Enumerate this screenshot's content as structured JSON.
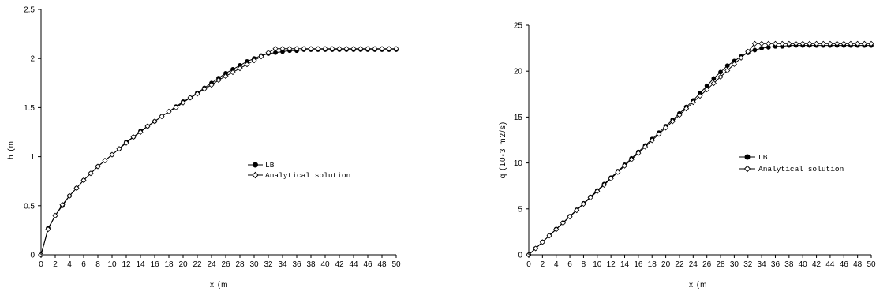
{
  "chart_data": [
    {
      "type": "line",
      "title": "",
      "xlabel": "x (m",
      "ylabel": "h (m",
      "xlim": [
        0,
        50
      ],
      "ylim": [
        0,
        2.5
      ],
      "x_ticks": [
        "0",
        "2",
        "4",
        "6",
        "8",
        "10",
        "12",
        "14",
        "16",
        "18",
        "20",
        "22",
        "24",
        "26",
        "28",
        "30",
        "32",
        "34",
        "36",
        "38",
        "40",
        "42",
        "44",
        "46",
        "48",
        "50"
      ],
      "y_ticks": [
        "0",
        "0.5",
        "1",
        "1.5",
        "2",
        "2.5"
      ],
      "legend_position": "right",
      "x": [
        0,
        1,
        2,
        3,
        4,
        5,
        6,
        7,
        8,
        9,
        10,
        11,
        12,
        13,
        14,
        15,
        16,
        17,
        18,
        19,
        20,
        21,
        22,
        23,
        24,
        25,
        26,
        27,
        28,
        29,
        30,
        31,
        32,
        33,
        34,
        35,
        36,
        37,
        38,
        39,
        40,
        41,
        42,
        43,
        44,
        45,
        46,
        47,
        48,
        49,
        50
      ],
      "series": [
        {
          "name": "LB",
          "marker": "filled-circle",
          "values": [
            0,
            0.27,
            0.4,
            0.5,
            0.6,
            0.68,
            0.76,
            0.83,
            0.9,
            0.96,
            1.02,
            1.08,
            1.15,
            1.2,
            1.26,
            1.31,
            1.36,
            1.41,
            1.46,
            1.51,
            1.56,
            1.6,
            1.65,
            1.7,
            1.75,
            1.8,
            1.85,
            1.89,
            1.93,
            1.97,
            2.0,
            2.03,
            2.05,
            2.06,
            2.07,
            2.08,
            2.08,
            2.09,
            2.09,
            2.09,
            2.09,
            2.09,
            2.09,
            2.09,
            2.09,
            2.09,
            2.09,
            2.09,
            2.09,
            2.09,
            2.09
          ]
        },
        {
          "name": "Analytical solution",
          "marker": "open-diamond",
          "values": [
            0,
            0.26,
            0.4,
            0.51,
            0.6,
            0.68,
            0.76,
            0.83,
            0.9,
            0.96,
            1.02,
            1.08,
            1.14,
            1.2,
            1.25,
            1.31,
            1.36,
            1.41,
            1.46,
            1.5,
            1.55,
            1.6,
            1.64,
            1.69,
            1.73,
            1.78,
            1.82,
            1.86,
            1.9,
            1.94,
            1.98,
            2.02,
            2.06,
            2.1,
            2.1,
            2.1,
            2.1,
            2.1,
            2.1,
            2.1,
            2.1,
            2.1,
            2.1,
            2.1,
            2.1,
            2.1,
            2.1,
            2.1,
            2.1,
            2.1,
            2.1
          ]
        }
      ]
    },
    {
      "type": "line",
      "title": "",
      "xlabel": "x (m",
      "ylabel": "q (10-3 m2/s)",
      "xlim": [
        0,
        50
      ],
      "ylim": [
        0,
        25
      ],
      "x_ticks": [
        "0",
        "2",
        "4",
        "6",
        "8",
        "10",
        "12",
        "14",
        "16",
        "18",
        "20",
        "22",
        "24",
        "26",
        "28",
        "30",
        "32",
        "34",
        "36",
        "38",
        "40",
        "42",
        "44",
        "46",
        "48",
        "50"
      ],
      "y_ticks": [
        "0",
        "5",
        "10",
        "15",
        "20",
        "25"
      ],
      "legend_position": "right",
      "x": [
        0,
        1,
        2,
        3,
        4,
        5,
        6,
        7,
        8,
        9,
        10,
        11,
        12,
        13,
        14,
        15,
        16,
        17,
        18,
        19,
        20,
        21,
        22,
        23,
        24,
        25,
        26,
        27,
        28,
        29,
        30,
        31,
        32,
        33,
        34,
        35,
        36,
        37,
        38,
        39,
        40,
        41,
        42,
        43,
        44,
        45,
        46,
        47,
        48,
        49,
        50
      ],
      "series": [
        {
          "name": "LB",
          "marker": "filled-circle",
          "values": [
            0,
            0.7,
            1.4,
            2.1,
            2.8,
            3.5,
            4.2,
            4.9,
            5.6,
            6.3,
            7.0,
            7.7,
            8.4,
            9.1,
            9.8,
            10.5,
            11.2,
            11.9,
            12.6,
            13.3,
            14.0,
            14.7,
            15.4,
            16.1,
            16.8,
            17.6,
            18.4,
            19.2,
            19.9,
            20.6,
            21.1,
            21.6,
            22.0,
            22.3,
            22.5,
            22.6,
            22.7,
            22.7,
            22.8,
            22.8,
            22.8,
            22.8,
            22.8,
            22.8,
            22.8,
            22.8,
            22.8,
            22.8,
            22.8,
            22.8,
            22.8
          ]
        },
        {
          "name": "Analytical solution",
          "marker": "open-diamond",
          "values": [
            0,
            0.69,
            1.38,
            2.08,
            2.77,
            3.46,
            4.15,
            4.84,
            5.54,
            6.23,
            6.92,
            7.61,
            8.3,
            9.0,
            9.69,
            10.38,
            11.07,
            11.76,
            12.46,
            13.15,
            13.84,
            14.53,
            15.22,
            15.92,
            16.61,
            17.3,
            17.99,
            18.68,
            19.38,
            20.07,
            20.76,
            21.45,
            22.14,
            23.0,
            23.0,
            23.0,
            23.0,
            23.0,
            23.0,
            23.0,
            23.0,
            23.0,
            23.0,
            23.0,
            23.0,
            23.0,
            23.0,
            23.0,
            23.0,
            23.0,
            23.0
          ]
        }
      ]
    }
  ],
  "colors": {
    "lb": "#000000",
    "analytical": "#000000"
  }
}
